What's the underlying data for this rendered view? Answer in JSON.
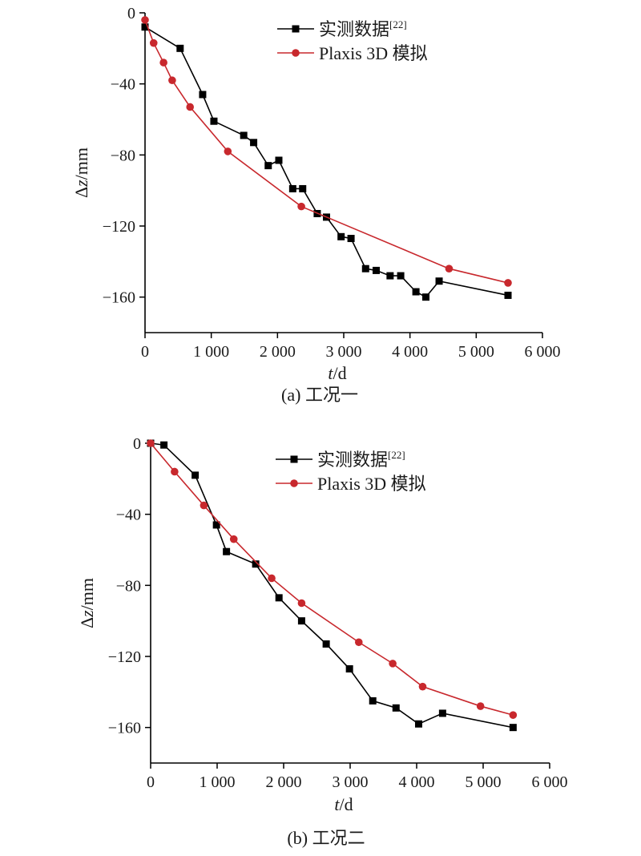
{
  "chart_data": [
    {
      "type": "line",
      "caption": "(a) 工况一",
      "xlabel_italic": "t",
      "xlabel_unit": "/d",
      "ylabel_prefix": "Δ",
      "ylabel_italic": "z",
      "ylabel_unit": "/mm",
      "xlim": [
        0,
        6000
      ],
      "ylim": [
        -180,
        0
      ],
      "xticks": [
        0,
        1000,
        2000,
        3000,
        4000,
        5000,
        6000
      ],
      "xtick_labels": [
        "0",
        "1 000",
        "2 000",
        "3 000",
        "4 000",
        "5 000",
        "6 000"
      ],
      "yticks": [
        0,
        -40,
        -80,
        -120,
        -160
      ],
      "ytick_labels": [
        "0",
        "−40",
        "−80",
        "−120",
        "−160"
      ],
      "legend_position": "top-right",
      "series": [
        {
          "name": "实测数据",
          "name_superscript": "[22]",
          "color": "#000000",
          "marker": "square",
          "x": [
            0,
            530,
            870,
            1040,
            1490,
            1640,
            1860,
            2020,
            2230,
            2380,
            2600,
            2740,
            2960,
            3110,
            3330,
            3490,
            3700,
            3860,
            4090,
            4240,
            4440,
            5480
          ],
          "y": [
            -8,
            -20,
            -46,
            -61,
            -69,
            -73,
            -86,
            -83,
            -99,
            -99,
            -113,
            -115,
            -126,
            -127,
            -144,
            -145,
            -148,
            -148,
            -157,
            -160,
            -151,
            -159
          ]
        },
        {
          "name": "Plaxis 3D 模拟",
          "color": "#c8282d",
          "marker": "circle",
          "x": [
            0,
            130,
            280,
            410,
            680,
            1250,
            2360,
            4590,
            5480
          ],
          "y": [
            -4,
            -17,
            -28,
            -38,
            -53,
            -78,
            -109,
            -144,
            -152
          ]
        }
      ]
    },
    {
      "type": "line",
      "caption": "(b) 工况二",
      "xlabel_italic": "t",
      "xlabel_unit": "/d",
      "ylabel_prefix": "Δ",
      "ylabel_italic": "z",
      "ylabel_unit": "/mm",
      "xlim": [
        0,
        6000
      ],
      "ylim": [
        -180,
        0
      ],
      "xticks": [
        0,
        1000,
        2000,
        3000,
        4000,
        5000,
        6000
      ],
      "xtick_labels": [
        "0",
        "1 000",
        "2 000",
        "3 000",
        "4 000",
        "5 000",
        "6 000"
      ],
      "yticks": [
        0,
        -40,
        -80,
        -120,
        -160
      ],
      "ytick_labels": [
        "0",
        "−40",
        "−80",
        "−120",
        "−160"
      ],
      "legend_position": "top-right",
      "series": [
        {
          "name": "实测数据",
          "name_superscript": "[22]",
          "color": "#000000",
          "marker": "square",
          "x": [
            0,
            200,
            670,
            990,
            1140,
            1580,
            1930,
            2270,
            2640,
            2990,
            3340,
            3690,
            4030,
            4390,
            5450
          ],
          "y": [
            0,
            -1,
            -18,
            -46,
            -61,
            -68,
            -87,
            -100,
            -113,
            -127,
            -145,
            -149,
            -158,
            -152,
            -160
          ]
        },
        {
          "name": "Plaxis 3D 模拟",
          "color": "#c8282d",
          "marker": "circle",
          "x": [
            0,
            360,
            800,
            1250,
            1820,
            2270,
            3130,
            3640,
            4090,
            4960,
            5450
          ],
          "y": [
            0,
            -16,
            -35,
            -54,
            -76,
            -90,
            -112,
            -124,
            -137,
            -148,
            -153
          ]
        }
      ]
    }
  ]
}
